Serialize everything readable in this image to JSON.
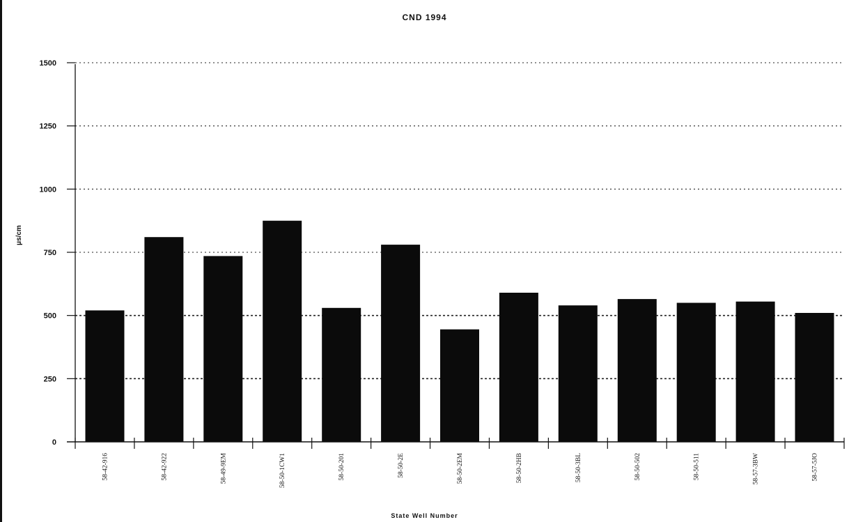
{
  "chart_data": {
    "type": "bar",
    "title": "CND 1994",
    "xlabel": "State Well Number",
    "ylabel": "μs/cm",
    "ylim": [
      0,
      1500
    ],
    "yticks": [
      0,
      250,
      500,
      750,
      1000,
      1250,
      1500
    ],
    "grid": true,
    "categories": [
      "58-42-916",
      "58-42-922",
      "58-49-9EM",
      "58-50-1CW1",
      "58-50-201",
      "58-50-2E",
      "58-50-2EM",
      "58-50-2HB",
      "58-50-3BL",
      "58-50-502",
      "58-50-511",
      "58-57-3BW",
      "58-57-5JO"
    ],
    "values": [
      520,
      810,
      735,
      875,
      530,
      780,
      445,
      590,
      540,
      565,
      550,
      555,
      510
    ]
  }
}
